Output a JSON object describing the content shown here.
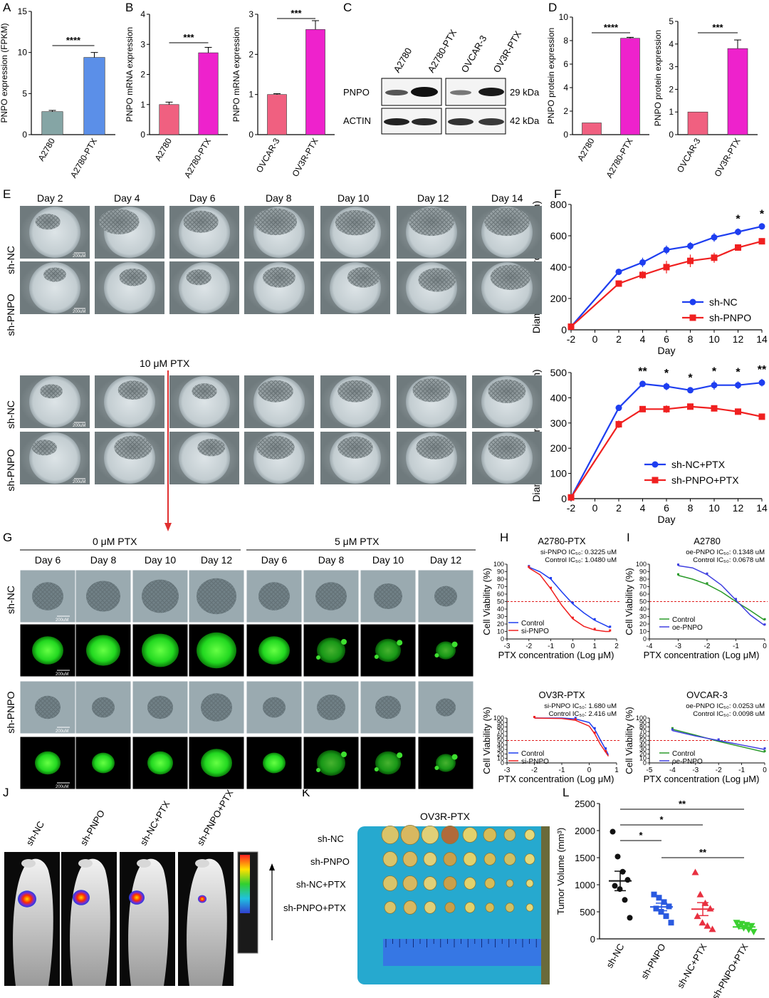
{
  "panels": {
    "A": {
      "letter": "A",
      "ylabel": "PNPO expression (FPKM)",
      "chart_data": {
        "type": "bar",
        "categories": [
          "A2780",
          "A2780-PTX"
        ],
        "values": [
          2.8,
          9.4
        ],
        "errors": [
          0.15,
          0.6
        ],
        "ylim": [
          0,
          15
        ],
        "yticks": [
          0,
          5,
          10,
          15
        ],
        "colors": [
          "#85a5a5",
          "#5b8fe8"
        ],
        "significance": "****"
      }
    },
    "B1": {
      "letter": "B",
      "ylabel": "PNPO mRNA expression",
      "chart_data": {
        "type": "bar",
        "categories": [
          "A2780",
          "A2780-PTX"
        ],
        "values": [
          1.0,
          2.72
        ],
        "errors": [
          0.08,
          0.18
        ],
        "ylim": [
          0,
          4
        ],
        "yticks": [
          0,
          1,
          2,
          3,
          4
        ],
        "colors": [
          "#f06080",
          "#ee22cc"
        ],
        "significance": "***"
      }
    },
    "B2": {
      "ylabel": "PNPO mRNA expression",
      "chart_data": {
        "type": "bar",
        "categories": [
          "OVCAR-3",
          "OV3R-PTX"
        ],
        "values": [
          1.0,
          2.62
        ],
        "errors": [
          0.02,
          0.22
        ],
        "ylim": [
          0,
          3
        ],
        "yticks": [
          0,
          1,
          2,
          3
        ],
        "colors": [
          "#f06080",
          "#ee22cc"
        ],
        "significance": "***"
      }
    },
    "C": {
      "letter": "C",
      "lanes": [
        "A2780",
        "A2780-PTX",
        "OVCAR-3",
        "OV3R-PTX"
      ],
      "bands": [
        "PNPO",
        "ACTIN"
      ],
      "sizes": [
        "29 kDa",
        "42 kDa"
      ]
    },
    "D1": {
      "letter": "D",
      "ylabel": "PNPO protein expression",
      "chart_data": {
        "type": "bar",
        "categories": [
          "A2780",
          "A2780-PTX"
        ],
        "values": [
          1.0,
          8.2
        ],
        "errors": [
          0,
          0.08
        ],
        "ylim": [
          0,
          10
        ],
        "yticks": [
          0,
          2,
          4,
          6,
          8,
          10
        ],
        "colors": [
          "#f06080",
          "#ee22cc"
        ],
        "significance": "****"
      }
    },
    "D2": {
      "ylabel": "PNPO protein expression",
      "chart_data": {
        "type": "bar",
        "categories": [
          "OVCAR-3",
          "OV3R-PTX"
        ],
        "values": [
          1.0,
          3.8
        ],
        "errors": [
          0,
          0.38
        ],
        "ylim": [
          0,
          5
        ],
        "yticks": [
          0,
          1,
          2,
          3,
          4,
          5
        ],
        "colors": [
          "#f06080",
          "#ee22cc"
        ],
        "significance": "***"
      }
    },
    "E": {
      "letter": "E",
      "days": [
        "Day 2",
        "Day 4",
        "Day 6",
        "Day 8",
        "Day 10",
        "Day 12",
        "Day 14"
      ],
      "rows": [
        "sh-NC",
        "sh-PNPO",
        "sh-NC",
        "sh-PNPO"
      ],
      "ptx_label": "10 μM PTX",
      "scale": "200uM"
    },
    "F1": {
      "letter": "F",
      "ylabel": "Diameter of microsphere (μm)",
      "xlabel": "Day",
      "chart_data": {
        "type": "line",
        "x": [
          -2,
          2,
          4,
          6,
          8,
          10,
          12,
          14
        ],
        "xlim": [
          -2,
          14
        ],
        "xticks": [
          -2,
          0,
          2,
          4,
          6,
          8,
          10,
          12,
          14
        ],
        "ylim": [
          0,
          800
        ],
        "yticks": [
          0,
          200,
          400,
          600,
          800
        ],
        "series": [
          {
            "name": "sh-NC",
            "color": "#1e3ef0",
            "values": [
              20,
              370,
              430,
              510,
              535,
              590,
              625,
              660
            ],
            "errors": [
              5,
              18,
              30,
              28,
              25,
              28,
              22,
              20
            ]
          },
          {
            "name": "sh-PNPO",
            "color": "#f02020",
            "values": [
              20,
              295,
              350,
              400,
              440,
              460,
              525,
              565
            ],
            "errors": [
              5,
              18,
              25,
              40,
              40,
              32,
              18,
              20
            ]
          }
        ],
        "stars": [
          {
            "x": 12,
            "label": "*"
          },
          {
            "x": 14,
            "label": "*"
          }
        ]
      }
    },
    "F2": {
      "ylabel": "Diameter of microsphere (μm)",
      "xlabel": "Day",
      "chart_data": {
        "type": "line",
        "x": [
          -2,
          2,
          4,
          6,
          8,
          10,
          12,
          14
        ],
        "xlim": [
          -2,
          14
        ],
        "xticks": [
          -2,
          0,
          2,
          4,
          6,
          8,
          10,
          12,
          14
        ],
        "ylim": [
          0,
          500
        ],
        "yticks": [
          0,
          100,
          200,
          300,
          400,
          500
        ],
        "series": [
          {
            "name": "sh-NC+PTX",
            "color": "#1e3ef0",
            "values": [
              5,
              360,
              455,
              445,
              430,
              450,
              450,
              460
            ],
            "errors": [
              3,
              12,
              12,
              15,
              12,
              18,
              15,
              15
            ]
          },
          {
            "name": "sh-PNPO+PTX",
            "color": "#f02020",
            "values": [
              5,
              295,
              355,
              355,
              365,
              358,
              345,
              325
            ],
            "errors": [
              3,
              15,
              10,
              15,
              8,
              8,
              8,
              12
            ]
          }
        ],
        "stars": [
          {
            "x": 4,
            "label": "**"
          },
          {
            "x": 6,
            "label": "*"
          },
          {
            "x": 8,
            "label": "*"
          },
          {
            "x": 10,
            "label": "*"
          },
          {
            "x": 12,
            "label": "*"
          },
          {
            "x": 14,
            "label": "**"
          }
        ]
      }
    },
    "G": {
      "letter": "G",
      "groups": [
        "0 μM PTX",
        "5 μM PTX"
      ],
      "days": [
        "Day 6",
        "Day 8",
        "Day 10",
        "Day 12",
        "Day 6",
        "Day 8",
        "Day 10",
        "Day 12"
      ],
      "rows": [
        "sh-NC",
        "sh-PNPO"
      ],
      "scale": "200uM"
    },
    "H1": {
      "letter": "H",
      "title": "A2780-PTX",
      "ic1": "si-PNPO IC₅₀: 0.3225 uM",
      "ic2": "Control IC₅₀: 1.0480 uM",
      "ylabel": "Cell Viability (%)",
      "xlabel": "PTX concentration (Log μM)",
      "chart_data": {
        "type": "line",
        "xlim": [
          -3,
          2
        ],
        "xticks": [
          -3,
          -2,
          -1,
          0,
          1,
          2
        ],
        "ylim": [
          0,
          100
        ],
        "yticks": [
          0,
          10,
          20,
          30,
          40,
          50,
          60,
          70,
          80,
          90,
          100
        ],
        "cutoff": 50,
        "series": [
          {
            "name": "Control",
            "color": "#1e3ef0",
            "x": [
              -2,
              -1.5,
              -1,
              -0.5,
              0,
              0.5,
              1,
              1.5,
              1.7
            ],
            "values": [
              96,
              90,
              80,
              63,
              47,
              35,
              25,
              18,
              15
            ]
          },
          {
            "name": "si-PNPO",
            "color": "#f02020",
            "x": [
              -2,
              -1.5,
              -1,
              -0.5,
              0,
              0.5,
              1,
              1.5,
              1.7
            ],
            "values": [
              95,
              86,
              67,
              45,
              27,
              17,
              12,
              10,
              10
            ]
          }
        ],
        "legend": [
          "Control",
          "si-PNPO"
        ]
      }
    },
    "H2": {
      "title": "OV3R-PTX",
      "ic1": "si-PNPO IC₅₀: 1.680 uM",
      "ic2": "Control IC₅₀: 2.416 uM",
      "ylabel": "Cell Viability (%)",
      "xlabel": "PTX concentration (Log μM)",
      "chart_data": {
        "type": "line",
        "xlim": [
          -3,
          1
        ],
        "xticks": [
          -3,
          -2,
          -1,
          0,
          1
        ],
        "ylim": [
          0,
          100
        ],
        "yticks": [
          0,
          10,
          20,
          30,
          40,
          50,
          60,
          70,
          80,
          90,
          100
        ],
        "cutoff": 50,
        "series": [
          {
            "name": "Control",
            "color": "#1e3ef0",
            "x": [
              -2,
              -1,
              -0.5,
              0,
              0.2,
              0.4,
              0.6,
              0.7
            ],
            "values": [
              100,
              100,
              98,
              90,
              75,
              52,
              30,
              18
            ]
          },
          {
            "name": "si-PNPO",
            "color": "#f02020",
            "x": [
              -2,
              -1,
              -0.5,
              0,
              0.2,
              0.4,
              0.6,
              0.7
            ],
            "values": [
              100,
              99,
              95,
              82,
              65,
              42,
              24,
              15
            ]
          }
        ],
        "legend": [
          "Control",
          "si-PNPO"
        ]
      }
    },
    "I1": {
      "letter": "I",
      "title": "A2780",
      "ic1": "oe-PNPO IC₅₀: 0.1348 uM",
      "ic2": "Control IC₅₀: 0.0678 uM",
      "ylabel": "Cell Viability (%)",
      "xlabel": "PTX concentration (Log μM)",
      "chart_data": {
        "type": "line",
        "xlim": [
          -4,
          0
        ],
        "xticks": [
          -4,
          -3,
          -2,
          -1,
          0
        ],
        "ylim": [
          0,
          100
        ],
        "yticks": [
          0,
          10,
          20,
          30,
          40,
          50,
          60,
          70,
          80,
          90,
          100
        ],
        "cutoff": 50,
        "series": [
          {
            "name": "Control",
            "color": "#2a9a2a",
            "x": [
              -3,
              -2.5,
              -2,
              -1.5,
              -1,
              -0.5,
              0
            ],
            "values": [
              85,
              80,
              73,
              63,
              50,
              38,
              25
            ]
          },
          {
            "name": "oe-PNPO",
            "color": "#4040e0",
            "x": [
              -3,
              -2.5,
              -2,
              -1.5,
              -1,
              -0.5,
              0
            ],
            "values": [
              98,
              95,
              86,
              72,
              52,
              32,
              18
            ]
          }
        ],
        "legend": [
          "Control",
          "oe-PNPO"
        ]
      }
    },
    "I2": {
      "title": "OVCAR-3",
      "ic1": "oe-PNPO IC₅₀: 0.0253 uM",
      "ic2": "Control IC₅₀: 0.0098 uM",
      "ylabel": "Cell Viability (%)",
      "xlabel": "PTX concentration (Log μM)",
      "chart_data": {
        "type": "line",
        "xlim": [
          -5,
          0
        ],
        "xticks": [
          -5,
          -4,
          -3,
          -2,
          -1,
          0
        ],
        "ylim": [
          0,
          100
        ],
        "yticks": [
          0,
          10,
          20,
          30,
          40,
          50,
          60,
          70,
          80,
          90,
          100
        ],
        "cutoff": 50,
        "series": [
          {
            "name": "Control",
            "color": "#2a9a2a",
            "x": [
              -4,
              -3,
              -2,
              -1,
              0
            ],
            "values": [
              75,
              62,
              48,
              36,
              24
            ]
          },
          {
            "name": "oe-PNPO",
            "color": "#4040e0",
            "x": [
              -4,
              -3,
              -2,
              -1,
              0
            ],
            "values": [
              72,
              60,
              50,
              40,
              30
            ]
          }
        ],
        "legend": [
          "Control",
          "oe-PNPO"
        ]
      }
    },
    "J": {
      "letter": "J",
      "groups": [
        "sh-NC",
        "sh-PNPO",
        "sh-NC+PTX",
        "sh-PNPO+PTX"
      ]
    },
    "K": {
      "letter": "K",
      "title": "OV3R-PTX",
      "rows": [
        "sh-NC",
        "sh-PNPO",
        "sh-NC+PTX",
        "sh-PNPO+PTX"
      ]
    },
    "L": {
      "letter": "L",
      "ylabel": "Tumor Volume (mm³)",
      "chart_data": {
        "type": "scatter",
        "categories": [
          "sh-NC",
          "sh-PNPO",
          "sh-NC+PTX",
          "sh-PNPO+PTX"
        ],
        "ylim": [
          0,
          2500
        ],
        "yticks": [
          0,
          500,
          1000,
          1500,
          2000,
          2500
        ],
        "points": [
          [
            1980,
            1520,
            1240,
            1090,
            980,
            920,
            720,
            390
          ],
          [
            820,
            760,
            680,
            600,
            560,
            500,
            420,
            300
          ],
          [
            1230,
            820,
            660,
            560,
            420,
            300,
            240,
            180
          ],
          [
            300,
            280,
            260,
            240,
            230,
            200,
            170,
            130
          ]
        ],
        "means": [
          1070,
          590,
          550,
          220
        ],
        "sems": [
          180,
          70,
          120,
          30
        ],
        "colors": [
          "#111111",
          "#2a5ae0",
          "#e83040",
          "#3ad030"
        ],
        "comparisons": [
          {
            "a": 0,
            "b": 3,
            "label": "**"
          },
          {
            "a": 0,
            "b": 2,
            "label": "*"
          },
          {
            "a": 0,
            "b": 1,
            "label": "*"
          },
          {
            "a": 1,
            "b": 3,
            "label": "**"
          }
        ]
      }
    }
  }
}
